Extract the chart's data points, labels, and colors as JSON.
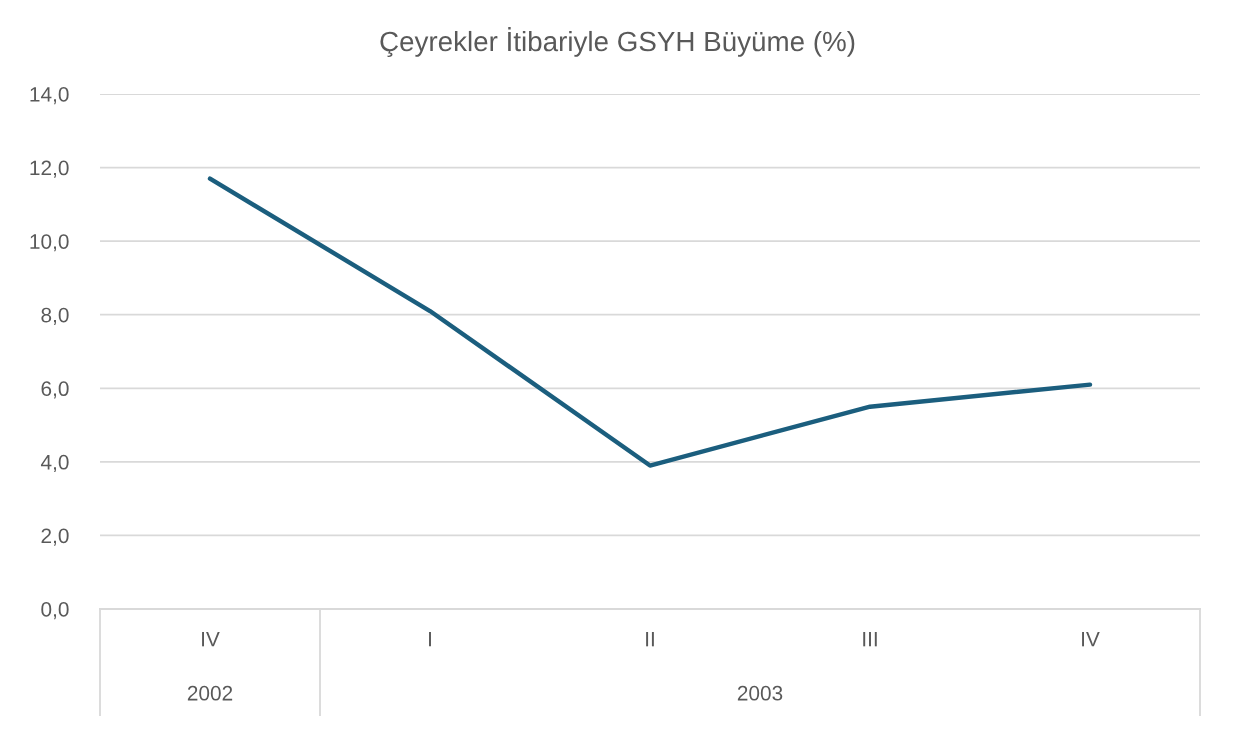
{
  "chart_data": {
    "type": "line",
    "title": "Çeyrekler İtibariyle GSYH Büyüme (%)",
    "categories": [
      "IV",
      "I",
      "II",
      "III",
      "IV"
    ],
    "series": [
      {
        "color": "#1b5e7e",
        "values": [
          11.7,
          8.1,
          3.9,
          5.5,
          6.1
        ]
      }
    ],
    "ylim": [
      0,
      14
    ],
    "yticks": [
      {
        "value": 0,
        "label": "0,0"
      },
      {
        "value": 2,
        "label": "2,0"
      },
      {
        "value": 4,
        "label": "4,0"
      },
      {
        "value": 6,
        "label": "6,0"
      },
      {
        "value": 8,
        "label": "8,0"
      },
      {
        "value": 10,
        "label": "10,0"
      },
      {
        "value": 12,
        "label": "12,0"
      },
      {
        "value": 14,
        "label": "14,0"
      }
    ],
    "grid": "y",
    "marker": "none",
    "line_style": "solid",
    "annotations": [
      "2002",
      "2003"
    ]
  }
}
